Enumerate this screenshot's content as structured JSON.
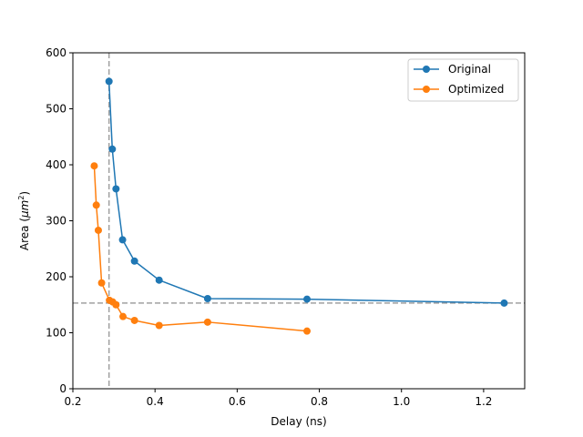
{
  "chart_data": {
    "type": "line",
    "title": "",
    "xlabel": "Delay (ns)",
    "ylabel_prefix": "Area (",
    "ylabel_unit": "μm",
    "ylabel_exp": "2",
    "ylabel_suffix": ")",
    "xlim": [
      0.2,
      1.3
    ],
    "ylim": [
      0,
      600
    ],
    "xticks": [
      0.2,
      0.4,
      0.6,
      0.8,
      1.0,
      1.2
    ],
    "xtick_labels": [
      "0.2",
      "0.4",
      "0.6",
      "0.8",
      "1.0",
      "1.2"
    ],
    "yticks": [
      0,
      100,
      200,
      300,
      400,
      500,
      600
    ],
    "ytick_labels": [
      "0",
      "100",
      "200",
      "300",
      "400",
      "500",
      "600"
    ],
    "grid": false,
    "legend_position": "top-right",
    "series": [
      {
        "name": "Original",
        "color": "#1f77b4",
        "marker": "circle",
        "x": [
          0.288,
          0.296,
          0.305,
          0.321,
          0.35,
          0.41,
          0.528,
          0.77,
          1.25
        ],
        "y": [
          549,
          428,
          357,
          266,
          228,
          194,
          161,
          160,
          153
        ]
      },
      {
        "name": "Optimized",
        "color": "#ff7f0e",
        "marker": "circle",
        "x": [
          0.252,
          0.257,
          0.262,
          0.27,
          0.289,
          0.297,
          0.305,
          0.322,
          0.35,
          0.41,
          0.528,
          0.77
        ],
        "y": [
          398,
          328,
          283,
          189,
          158,
          155,
          150,
          129,
          122,
          113,
          119,
          103
        ]
      }
    ],
    "reference_lines": [
      {
        "orientation": "vertical",
        "x": 0.288,
        "color": "#a0a0a0",
        "style": "dashed"
      },
      {
        "orientation": "horizontal",
        "y": 153,
        "color": "#a0a0a0",
        "style": "dashed"
      }
    ]
  }
}
